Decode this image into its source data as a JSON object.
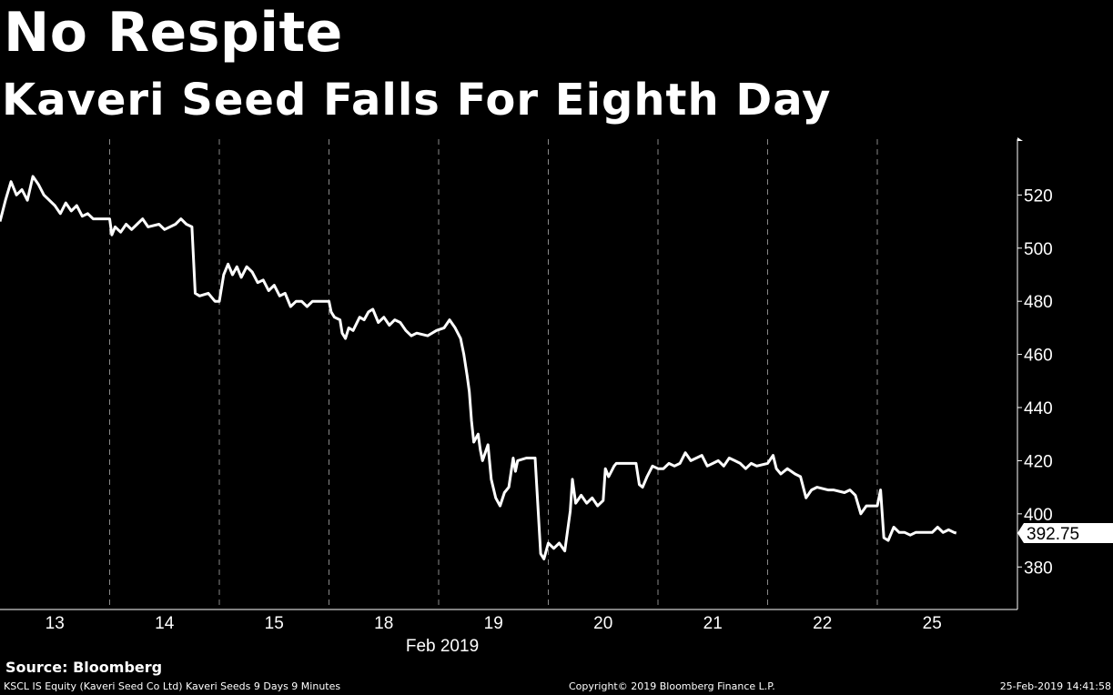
{
  "header": {
    "title": "No Respite",
    "subtitle": "Kaveri Seed Falls For Eighth Day"
  },
  "footer": {
    "source": "Source: Bloomberg",
    "left": "KSCL IS Equity (Kaveri Seed Co Ltd) Kaveri Seeds 9 Days 9 Minutes",
    "center": "Copyright© 2019 Bloomberg Finance L.P.",
    "right": "25-Feb-2019 14:41:58"
  },
  "colors": {
    "background": "#000000",
    "line": "#ffffff",
    "grid": "#888888"
  },
  "chart_data": {
    "type": "line",
    "title": "No Respite",
    "subtitle": "Kaveri Seed Falls For Eighth Day",
    "xlabel": "Feb 2019",
    "ylabel": "",
    "categories": [
      "13",
      "14",
      "15",
      "18",
      "19",
      "20",
      "21",
      "22",
      "25"
    ],
    "yticks": [
      380,
      400,
      420,
      440,
      460,
      480,
      500,
      520
    ],
    "ylim": [
      364,
      541
    ],
    "xlim": [
      0,
      9.2
    ],
    "grid": "vertical-dashed",
    "last_value_label": "392.75",
    "series": [
      {
        "values": [
          [
            0.0,
            510
          ],
          [
            0.05,
            518
          ],
          [
            0.1,
            525
          ],
          [
            0.15,
            520
          ],
          [
            0.2,
            522
          ],
          [
            0.25,
            518
          ],
          [
            0.3,
            527
          ],
          [
            0.35,
            524
          ],
          [
            0.4,
            520
          ],
          [
            0.5,
            516
          ],
          [
            0.55,
            513
          ],
          [
            0.6,
            517
          ],
          [
            0.65,
            514
          ],
          [
            0.7,
            516
          ],
          [
            0.75,
            512
          ],
          [
            0.8,
            513
          ],
          [
            0.85,
            511
          ],
          [
            1.0,
            511
          ],
          [
            1.02,
            505
          ],
          [
            1.05,
            508
          ],
          [
            1.1,
            506
          ],
          [
            1.15,
            509
          ],
          [
            1.2,
            507
          ],
          [
            1.25,
            509
          ],
          [
            1.3,
            511
          ],
          [
            1.35,
            508
          ],
          [
            1.45,
            509
          ],
          [
            1.5,
            507
          ],
          [
            1.6,
            509
          ],
          [
            1.65,
            511
          ],
          [
            1.7,
            509
          ],
          [
            1.75,
            508
          ],
          [
            1.78,
            483
          ],
          [
            1.82,
            482
          ],
          [
            1.9,
            483
          ],
          [
            1.96,
            480
          ],
          [
            2.0,
            480
          ],
          [
            2.04,
            490
          ],
          [
            2.08,
            494
          ],
          [
            2.12,
            490
          ],
          [
            2.16,
            493
          ],
          [
            2.2,
            489
          ],
          [
            2.25,
            493
          ],
          [
            2.3,
            491
          ],
          [
            2.35,
            487
          ],
          [
            2.4,
            488
          ],
          [
            2.45,
            484
          ],
          [
            2.5,
            486
          ],
          [
            2.55,
            482
          ],
          [
            2.6,
            483
          ],
          [
            2.65,
            478
          ],
          [
            2.7,
            480
          ],
          [
            2.75,
            480
          ],
          [
            2.8,
            478
          ],
          [
            2.85,
            480
          ],
          [
            3.0,
            480
          ],
          [
            3.02,
            476
          ],
          [
            3.05,
            474
          ],
          [
            3.1,
            473
          ],
          [
            3.12,
            468
          ],
          [
            3.15,
            466
          ],
          [
            3.18,
            470
          ],
          [
            3.22,
            469
          ],
          [
            3.28,
            474
          ],
          [
            3.32,
            473
          ],
          [
            3.36,
            476
          ],
          [
            3.4,
            477
          ],
          [
            3.45,
            472
          ],
          [
            3.5,
            474
          ],
          [
            3.55,
            471
          ],
          [
            3.6,
            473
          ],
          [
            3.65,
            472
          ],
          [
            3.7,
            469
          ],
          [
            3.75,
            467
          ],
          [
            3.8,
            468
          ],
          [
            3.9,
            467
          ],
          [
            3.98,
            469
          ],
          [
            4.05,
            470
          ],
          [
            4.1,
            473
          ],
          [
            4.15,
            470
          ],
          [
            4.2,
            466
          ],
          [
            4.23,
            460
          ],
          [
            4.26,
            452
          ],
          [
            4.28,
            446
          ],
          [
            4.3,
            435
          ],
          [
            4.32,
            427
          ],
          [
            4.36,
            430
          ],
          [
            4.38,
            424
          ],
          [
            4.4,
            420
          ],
          [
            4.45,
            426
          ],
          [
            4.48,
            413
          ],
          [
            4.52,
            406
          ],
          [
            4.56,
            403
          ],
          [
            4.6,
            408
          ],
          [
            4.64,
            410
          ],
          [
            4.68,
            421
          ],
          [
            4.7,
            416
          ],
          [
            4.72,
            420
          ],
          [
            4.8,
            421
          ],
          [
            4.88,
            421
          ],
          [
            4.93,
            385
          ],
          [
            4.96,
            383
          ],
          [
            5.0,
            389
          ],
          [
            5.05,
            387
          ],
          [
            5.1,
            389
          ],
          [
            5.15,
            386
          ],
          [
            5.2,
            401
          ],
          [
            5.22,
            413
          ],
          [
            5.25,
            404
          ],
          [
            5.3,
            407
          ],
          [
            5.35,
            404
          ],
          [
            5.4,
            406
          ],
          [
            5.45,
            403
          ],
          [
            5.5,
            405
          ],
          [
            5.52,
            417
          ],
          [
            5.55,
            414
          ],
          [
            5.6,
            418
          ],
          [
            5.62,
            419
          ],
          [
            5.7,
            419
          ],
          [
            5.8,
            419
          ],
          [
            5.83,
            411
          ],
          [
            5.86,
            410
          ],
          [
            5.9,
            414
          ],
          [
            5.95,
            418
          ],
          [
            6.0,
            417
          ],
          [
            6.05,
            417
          ],
          [
            6.1,
            419
          ],
          [
            6.15,
            418
          ],
          [
            6.2,
            419
          ],
          [
            6.25,
            423
          ],
          [
            6.3,
            420
          ],
          [
            6.35,
            421
          ],
          [
            6.4,
            422
          ],
          [
            6.45,
            418
          ],
          [
            6.5,
            419
          ],
          [
            6.55,
            420
          ],
          [
            6.6,
            418
          ],
          [
            6.65,
            421
          ],
          [
            6.7,
            420
          ],
          [
            6.75,
            419
          ],
          [
            6.8,
            417
          ],
          [
            6.85,
            419
          ],
          [
            6.9,
            418
          ],
          [
            7.0,
            419
          ],
          [
            7.05,
            422
          ],
          [
            7.08,
            417
          ],
          [
            7.12,
            415
          ],
          [
            7.18,
            417
          ],
          [
            7.25,
            415
          ],
          [
            7.3,
            414
          ],
          [
            7.35,
            406
          ],
          [
            7.4,
            409
          ],
          [
            7.45,
            410
          ],
          [
            7.55,
            409
          ],
          [
            7.6,
            409
          ],
          [
            7.7,
            408
          ],
          [
            7.75,
            409
          ],
          [
            7.8,
            407
          ],
          [
            7.85,
            400
          ],
          [
            7.9,
            403
          ],
          [
            7.95,
            403
          ],
          [
            8.0,
            403
          ],
          [
            8.03,
            409
          ],
          [
            8.06,
            391
          ],
          [
            8.1,
            390
          ],
          [
            8.15,
            395
          ],
          [
            8.2,
            393
          ],
          [
            8.25,
            393
          ],
          [
            8.3,
            392
          ],
          [
            8.35,
            393
          ],
          [
            8.4,
            393
          ],
          [
            8.45,
            393
          ],
          [
            8.5,
            393
          ],
          [
            8.55,
            395
          ],
          [
            8.6,
            393
          ],
          [
            8.65,
            394
          ],
          [
            8.7,
            393
          ],
          [
            8.72,
            392.75
          ]
        ]
      }
    ]
  }
}
